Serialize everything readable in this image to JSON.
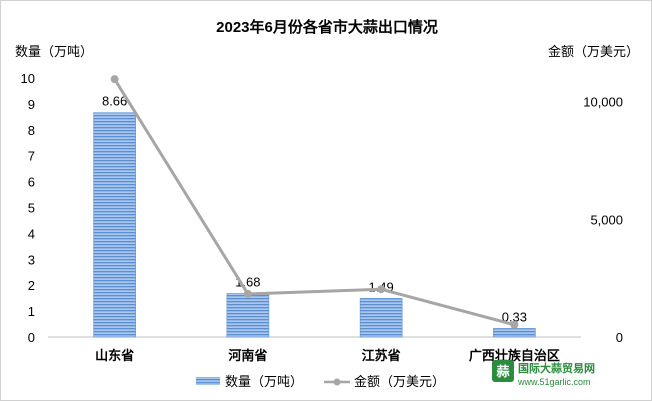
{
  "chart_data": {
    "type": "bar",
    "title": "2023年6月份各省市大蒜出口情况",
    "categories": [
      "山东省",
      "河南省",
      "江苏省",
      "广西壮族自治区"
    ],
    "ylabel_left": "数量（万吨）",
    "ylabel_right": "金额（万美元）",
    "ylim_left": [
      0,
      10
    ],
    "yticks_left": [
      "0",
      "1",
      "2",
      "3",
      "4",
      "5",
      "6",
      "7",
      "8",
      "9",
      "10"
    ],
    "ylim_right": [
      0,
      11000
    ],
    "yticks_right": [
      {
        "value": 0,
        "label": "0"
      },
      {
        "value": 5000,
        "label": "5,000"
      },
      {
        "value": 10000,
        "label": "10,000"
      }
    ],
    "series": [
      {
        "name": "数量（万吨）",
        "type": "bar",
        "axis": "left",
        "values": [
          8.66,
          1.68,
          1.49,
          0.33
        ],
        "labels": [
          "8.66",
          "1.68",
          "1.49",
          "0.33"
        ],
        "color": "#6f9fd8"
      },
      {
        "name": "金额（万美元）",
        "type": "line",
        "axis": "right",
        "values": [
          10950,
          1830,
          2030,
          520
        ],
        "color": "#a6a6a6"
      }
    ],
    "legend_position": "bottom",
    "grid": false
  },
  "watermark": {
    "name": "国际大蒜贸易网",
    "url": "www.51garlic.com",
    "logo_text": "蒜"
  }
}
